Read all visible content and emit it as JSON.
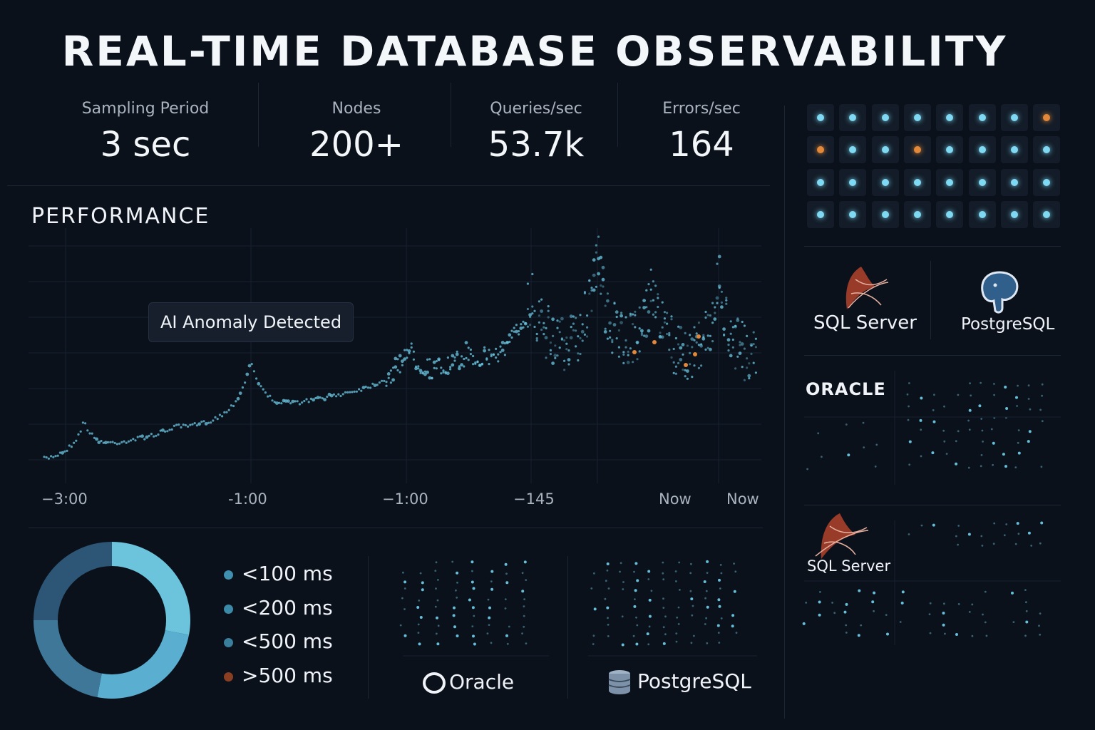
{
  "title": "REAL-TIME DATABASE OBSERVABILITY",
  "kpis": [
    {
      "label": "Sampling Period",
      "value": "3 sec"
    },
    {
      "label": "Nodes",
      "value": "200+"
    },
    {
      "label": "Queries/sec",
      "value": "53.7k"
    },
    {
      "label": "Errors/sec",
      "value": "164"
    }
  ],
  "performance": {
    "title": "PERFORMANCE",
    "annotation": "AI Anomaly Detected",
    "x_ticks": [
      "−3:00",
      "-1:00",
      "−1:00",
      "−145",
      "Now",
      "Now"
    ]
  },
  "latency_legend": [
    {
      "label": "<100 ms",
      "color": "#3f8fae"
    },
    {
      "label": "<200 ms",
      "color": "#3b8aa8"
    },
    {
      "label": "<500 ms",
      "color": "#3a7f9c"
    },
    {
      "label": ">500 ms",
      "color": "#b5532a"
    }
  ],
  "latency_donut": [
    {
      "label": "<100 ms",
      "value": 0.28,
      "color": "#6cc3dc"
    },
    {
      "label": "<200 ms",
      "value": 0.25,
      "color": "#5aaed0"
    },
    {
      "label": "<500 ms",
      "value": 0.22,
      "color": "#3e7798"
    },
    {
      "label": ">500 ms",
      "value": 0.25,
      "color": "#2d5575"
    }
  ],
  "bottom_dbs": [
    {
      "name": "Oracle",
      "icon": "oracle-ring-icon"
    },
    {
      "name": "PostgreSQL",
      "icon": "database-cylinder-icon"
    }
  ],
  "node_grid": {
    "rows": 4,
    "cols": 8,
    "alert_cells": [
      [
        0,
        7
      ],
      [
        1,
        0
      ],
      [
        1,
        3
      ]
    ],
    "ok_color": "#7fd9f2",
    "alert_color": "#e2883a"
  },
  "side_dbs": [
    {
      "name": "SQL Server",
      "icon": "sql-server-logo-icon"
    },
    {
      "name": "PostgreSQL",
      "icon": "postgresql-elephant-icon"
    },
    {
      "name": "ORACLE",
      "icon": "oracle-wordmark"
    },
    {
      "name": "SQL Server",
      "icon": "sql-server-logo-icon"
    }
  ],
  "colors": {
    "background": "#0b111b",
    "accent": "#6cc3dc",
    "anomaly": "#e2883a"
  }
}
